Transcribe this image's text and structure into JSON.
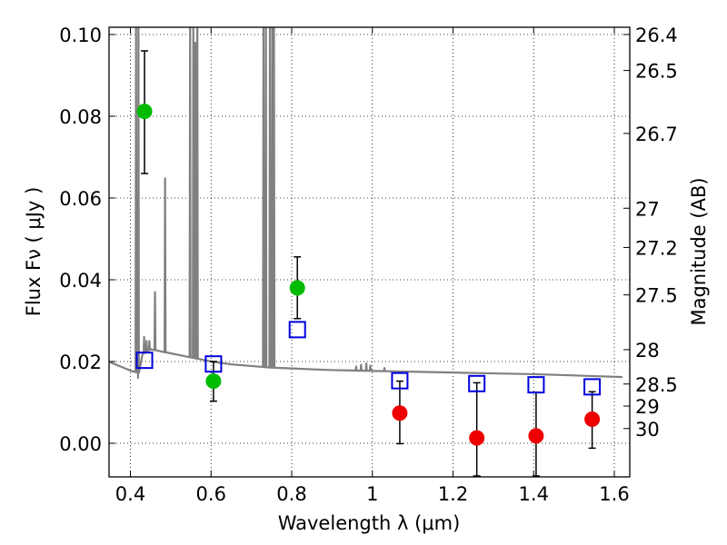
{
  "chart_data": {
    "type": "scatter",
    "title": "",
    "xlabel": "Wavelength  λ (μm)",
    "ylabel": "Flux  Fν  ( μJy )",
    "ylabel_right": "Magnitude (AB)",
    "xlim": [
      0.35,
      1.62
    ],
    "ylim": [
      -0.008,
      0.102
    ],
    "grid": true,
    "x_ticks": [
      0.4,
      0.6,
      0.8,
      1.0,
      1.2,
      1.4,
      1.6
    ],
    "x_tick_labels": [
      "0.4",
      "0.6",
      "0.8",
      "1",
      "1.2",
      "1.4",
      "1.6"
    ],
    "y_ticks": [
      0.0,
      0.02,
      0.04,
      0.06,
      0.08,
      0.1
    ],
    "y_tick_labels": [
      "0.00",
      "0.02",
      "0.04",
      "0.06",
      "0.08",
      "0.10"
    ],
    "right_ticks": [
      {
        "label": "26.4",
        "flux": 0.1
      },
      {
        "label": "26.5",
        "flux": 0.0912
      },
      {
        "label": "26.7",
        "flux": 0.0758
      },
      {
        "label": "27",
        "flux": 0.0575
      },
      {
        "label": "27.2",
        "flux": 0.0479
      },
      {
        "label": "27.5",
        "flux": 0.0363
      },
      {
        "label": "28",
        "flux": 0.0229
      },
      {
        "label": "28.5",
        "flux": 0.0145
      },
      {
        "label": "29",
        "flux": 0.0091
      },
      {
        "label": "30",
        "flux": 0.0036
      }
    ],
    "series": [
      {
        "marker": "circle",
        "color": "#00bb00",
        "points": [
          {
            "x": 0.435,
            "y": 0.0812,
            "err_lo": 0.0152,
            "err_hi": 0.0148
          },
          {
            "x": 0.606,
            "y": 0.0152,
            "err_lo": 0.0049,
            "err_hi": 0.0048
          },
          {
            "x": 0.814,
            "y": 0.038,
            "err_lo": 0.0075,
            "err_hi": 0.0076
          }
        ]
      },
      {
        "marker": "circle",
        "color": "#ee0000",
        "points": [
          {
            "x": 1.068,
            "y": 0.0074,
            "err_lo": 0.0075,
            "err_hi": 0.0078
          },
          {
            "x": 1.259,
            "y": 0.0013,
            "err_lo": 0.0093,
            "err_hi": 0.0135
          },
          {
            "x": 1.406,
            "y": 0.0018,
            "err_lo": 0.0098,
            "err_hi": 0.0107
          },
          {
            "x": 1.545,
            "y": 0.0059,
            "err_lo": 0.0071,
            "err_hi": 0.0067
          }
        ]
      },
      {
        "marker": "square",
        "color": "#0000dd",
        "points": [
          {
            "x": 0.435,
            "y": 0.0203
          },
          {
            "x": 0.606,
            "y": 0.0194
          },
          {
            "x": 0.814,
            "y": 0.0278
          },
          {
            "x": 1.068,
            "y": 0.0153
          },
          {
            "x": 1.259,
            "y": 0.0146
          },
          {
            "x": 1.406,
            "y": 0.0143
          },
          {
            "x": 1.545,
            "y": 0.0138
          }
        ]
      }
    ],
    "model_spectrum": {
      "color": "#808080",
      "continuum": [
        [
          0.35,
          0.0198
        ],
        [
          0.37,
          0.019
        ],
        [
          0.39,
          0.0182
        ],
        [
          0.405,
          0.0176
        ],
        [
          0.415,
          0.0174
        ],
        [
          0.419,
          0.016
        ],
        [
          0.421,
          0.0185
        ],
        [
          0.43,
          0.0218
        ],
        [
          0.45,
          0.023
        ],
        [
          0.47,
          0.0226
        ],
        [
          0.5,
          0.022
        ],
        [
          0.53,
          0.0214
        ],
        [
          0.56,
          0.0208
        ],
        [
          0.6,
          0.02
        ],
        [
          0.65,
          0.0193
        ],
        [
          0.7,
          0.0189
        ],
        [
          0.75,
          0.0185
        ],
        [
          0.8,
          0.0183
        ],
        [
          0.85,
          0.0181
        ],
        [
          0.9,
          0.0179
        ],
        [
          0.95,
          0.0178
        ],
        [
          1.0,
          0.0177
        ],
        [
          1.05,
          0.0176
        ],
        [
          1.1,
          0.0175
        ],
        [
          1.2,
          0.0173
        ],
        [
          1.3,
          0.0171
        ],
        [
          1.4,
          0.0169
        ],
        [
          1.5,
          0.0166
        ],
        [
          1.62,
          0.0162
        ]
      ],
      "lines": [
        {
          "x": 0.414,
          "peak": 0.103
        },
        {
          "x": 0.42,
          "peak": 0.103
        },
        {
          "x": 0.434,
          "peak": 0.026
        },
        {
          "x": 0.44,
          "peak": 0.025
        },
        {
          "x": 0.447,
          "peak": 0.025
        },
        {
          "x": 0.461,
          "peak": 0.037
        },
        {
          "x": 0.486,
          "peak": 0.0648
        },
        {
          "x": 0.548,
          "peak": 0.103
        },
        {
          "x": 0.556,
          "peak": 0.103
        },
        {
          "x": 0.561,
          "peak": 0.098
        },
        {
          "x": 0.566,
          "peak": 0.103
        },
        {
          "x": 0.73,
          "peak": 0.103
        },
        {
          "x": 0.736,
          "peak": 0.103
        },
        {
          "x": 0.746,
          "peak": 0.103
        },
        {
          "x": 0.752,
          "peak": 0.103
        },
        {
          "x": 0.756,
          "peak": 0.103
        },
        {
          "x": 0.96,
          "peak": 0.0188
        },
        {
          "x": 0.972,
          "peak": 0.0192
        },
        {
          "x": 0.985,
          "peak": 0.0195
        },
        {
          "x": 0.995,
          "peak": 0.019
        },
        {
          "x": 1.03,
          "peak": 0.0184
        }
      ]
    }
  }
}
